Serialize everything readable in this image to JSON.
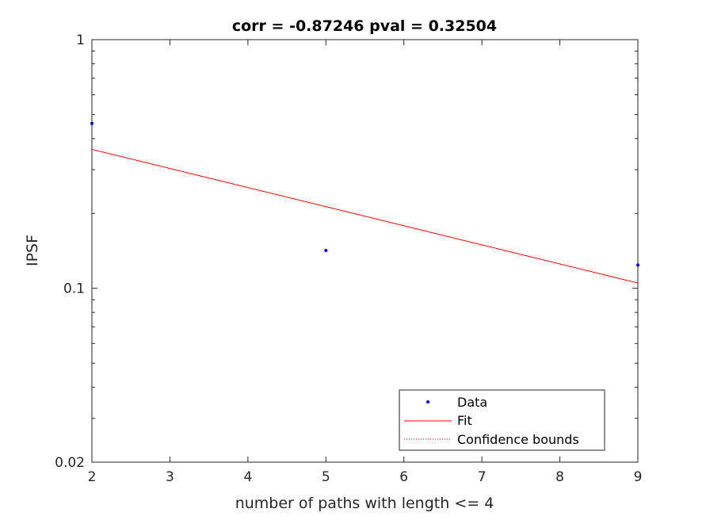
{
  "chart_data": {
    "type": "scatter",
    "title": "corr = -0.87246 pval = 0.32504",
    "xlabel": "number of paths with length <= 4",
    "ylabel": "IPSF",
    "xlim": [
      2,
      9
    ],
    "ylim": [
      0.02,
      1
    ],
    "yscale": "log",
    "xticks": [
      2,
      3,
      4,
      5,
      6,
      7,
      8,
      9
    ],
    "xtick_labels": [
      "2",
      "3",
      "4",
      "5",
      "6",
      "7",
      "8",
      "9"
    ],
    "yticks": [
      0.02,
      0.1,
      1
    ],
    "ytick_labels": [
      "0.02",
      "0.1",
      "1"
    ],
    "grid": false,
    "legend_position": "bottom-right",
    "series": [
      {
        "name": "Data",
        "kind": "points",
        "color": "#0000ff",
        "x": [
          2,
          5,
          9
        ],
        "y": [
          0.46,
          0.142,
          0.124
        ]
      },
      {
        "name": "Fit",
        "kind": "line",
        "color": "#ff0000",
        "x": [
          2,
          9
        ],
        "y": [
          0.362,
          0.105
        ]
      },
      {
        "name": "Confidence bounds",
        "kind": "dotted-line",
        "color": "#ff0000",
        "x": [],
        "y": []
      }
    ]
  }
}
